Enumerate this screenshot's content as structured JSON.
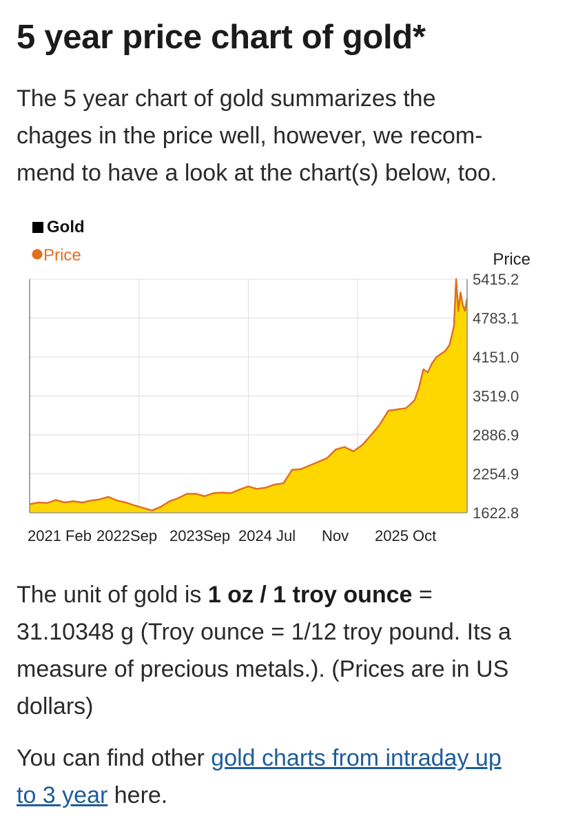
{
  "page": {
    "title": "5 year price chart of gold*",
    "intro_lines": [
      "The 5 year chart of gold summarizes the",
      "chages in the price well, however, we recom-",
      "mend to have a look at the chart(s) below, too."
    ]
  },
  "unit_text": {
    "line1_prefix": "The unit of gold is ",
    "line1_bold": "1 oz / 1 troy ounce",
    "line1_suffix": " =",
    "line2": "31.10348 g (Troy ounce = 1/12 troy pound. Its a",
    "line3": "measure of precious metals.). (Prices are in US",
    "line4": "dollars)"
  },
  "more_text": {
    "prefix": "You can find other ",
    "link_part1": "gold charts from intraday up",
    "link_part2": "to 3 year",
    "suffix": " here."
  },
  "chart_data": {
    "type": "area",
    "legend": {
      "title": "Gold",
      "series_label": "Price"
    },
    "y_axis_title": "Price",
    "ylim": [
      1622.8,
      5415.2
    ],
    "y_ticks": [
      "5415.2",
      "4783.1",
      "4151.0",
      "3519.0",
      "2886.9",
      "2254.9",
      "1622.8"
    ],
    "x_tick_labels": [
      "2021 Feb",
      "2022Sep",
      "2023Sep",
      "2024 Jul",
      "Nov",
      "2025 Oct"
    ],
    "series": [
      {
        "name": "Price",
        "x": [
          0,
          0.02,
          0.04,
          0.06,
          0.08,
          0.1,
          0.12,
          0.14,
          0.16,
          0.18,
          0.2,
          0.22,
          0.24,
          0.26,
          0.28,
          0.3,
          0.32,
          0.34,
          0.36,
          0.38,
          0.4,
          0.42,
          0.44,
          0.46,
          0.48,
          0.5,
          0.52,
          0.54,
          0.56,
          0.58,
          0.6,
          0.62,
          0.64,
          0.66,
          0.68,
          0.7,
          0.72,
          0.74,
          0.76,
          0.78,
          0.8,
          0.82,
          0.84,
          0.86,
          0.87,
          0.88,
          0.89,
          0.9,
          0.91,
          0.92,
          0.93,
          0.94,
          0.95,
          0.96,
          0.97,
          0.975,
          0.98,
          0.985,
          0.99,
          0.995,
          1.0
        ],
        "values": [
          1760,
          1790,
          1780,
          1830,
          1790,
          1810,
          1790,
          1820,
          1840,
          1880,
          1820,
          1790,
          1740,
          1700,
          1660,
          1720,
          1810,
          1860,
          1930,
          1930,
          1890,
          1940,
          1950,
          1940,
          2000,
          2050,
          2010,
          2030,
          2080,
          2100,
          2320,
          2330,
          2390,
          2450,
          2510,
          2650,
          2690,
          2620,
          2720,
          2880,
          3050,
          3280,
          3300,
          3320,
          3380,
          3450,
          3650,
          3950,
          3900,
          4050,
          4150,
          4200,
          4250,
          4350,
          4650,
          5415,
          4900,
          5200,
          5000,
          4900,
          5100
        ]
      }
    ],
    "colors": {
      "area": "#ffd700",
      "line": "#e07020",
      "legend_square": "#000000"
    }
  }
}
